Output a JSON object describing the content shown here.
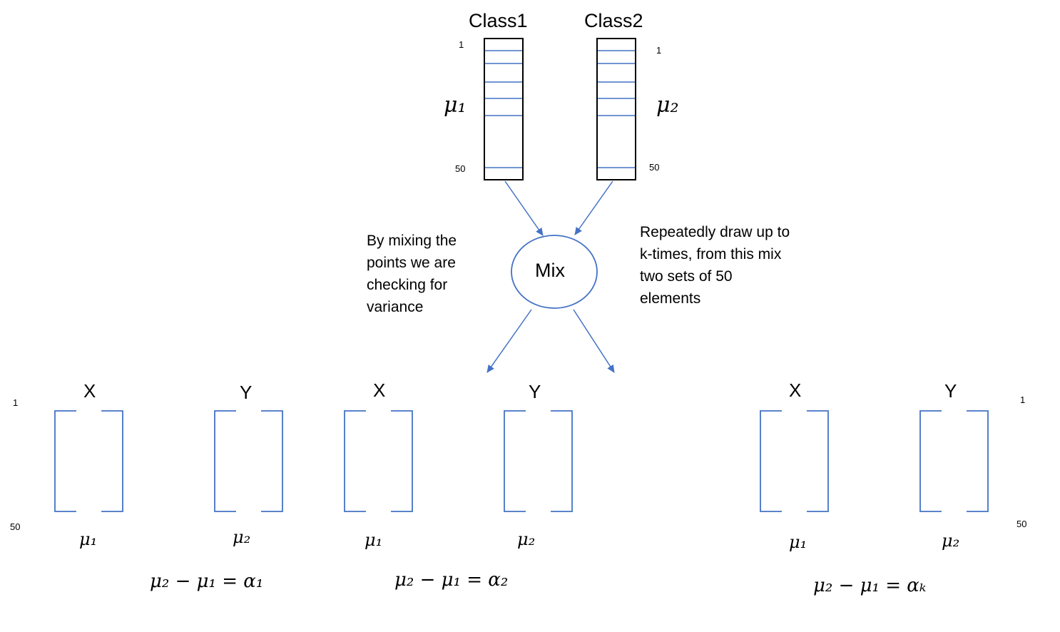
{
  "classes": [
    {
      "title": "Class1",
      "index_top": "1",
      "index_bottom": "50",
      "mean": "μ₁"
    },
    {
      "title": "Class2",
      "index_top": "1",
      "index_bottom": "50",
      "mean": "μ₂"
    }
  ],
  "mix": {
    "label": "Mix"
  },
  "notes": {
    "left": "By mixing the points we are checking for variance",
    "right": "Repeatedly  draw up to k-times, from this mix two sets of 50 elements"
  },
  "samples": {
    "index_left_top": "1",
    "index_left_bottom": "50",
    "index_right_top": "1",
    "index_right_bottom": "50",
    "groups": [
      {
        "x_label": "X",
        "y_label": "Y",
        "x_mean": "μ₁",
        "y_mean": "μ₂",
        "equation": "μ₂  − μ₁ = α₁"
      },
      {
        "x_label": "X",
        "y_label": "Y",
        "x_mean": "μ₁",
        "y_mean": "μ₂",
        "equation": "μ₂  − μ₁ = α₂"
      },
      {
        "x_label": "X",
        "y_label": "Y",
        "x_mean": "μ₁",
        "y_mean": "μ₂",
        "equation": "μ₂  − μ₁ = αₖ"
      }
    ]
  },
  "colors": {
    "line": "#4472c4",
    "stroke": "#000000"
  }
}
